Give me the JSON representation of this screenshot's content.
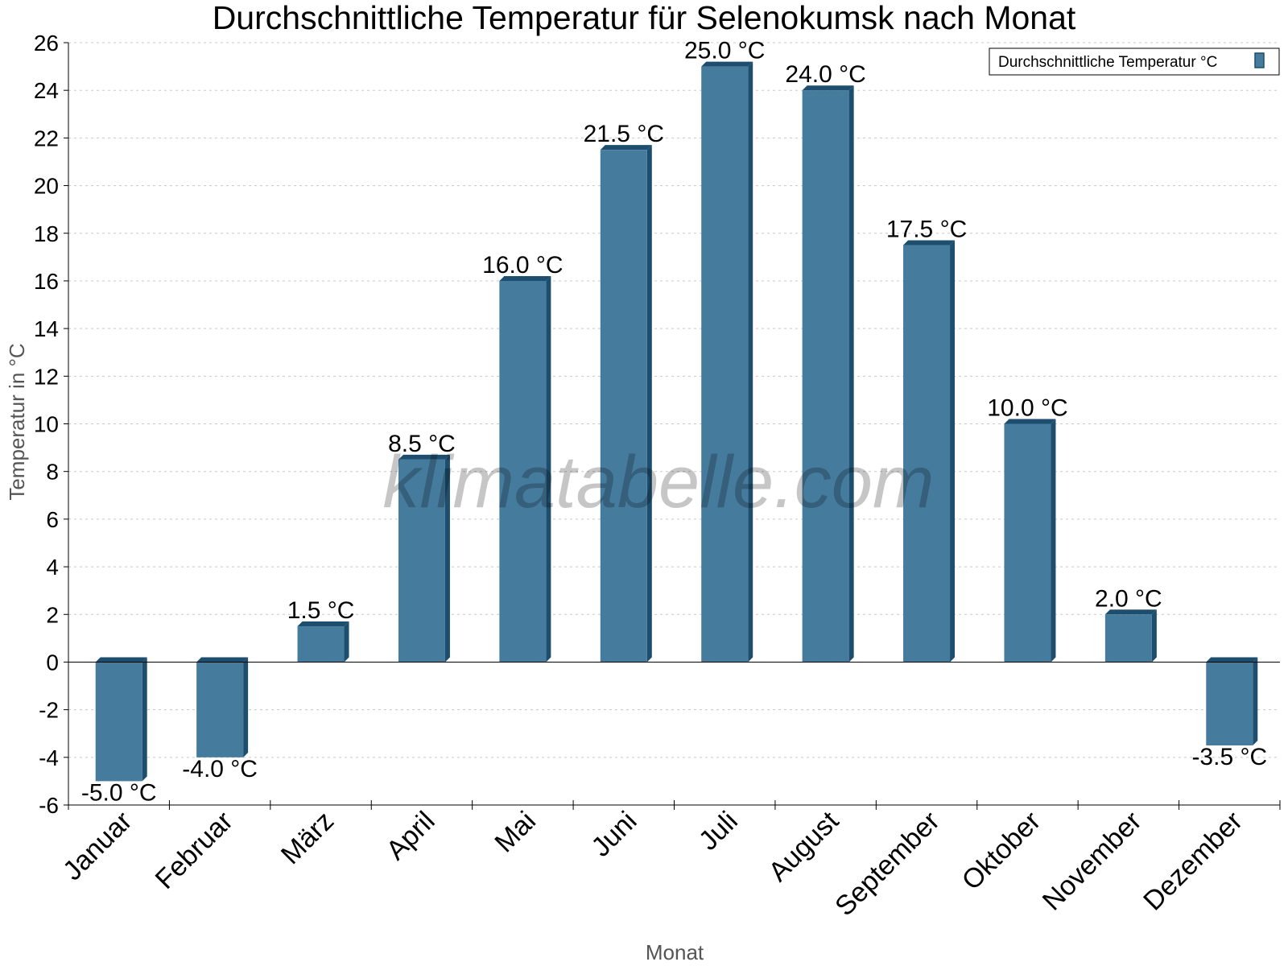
{
  "chart_data": {
    "type": "bar",
    "title": "Durchschnittliche Temperatur für Selenokumsk nach Monat",
    "xlabel": "Monat",
    "ylabel": "Temperatur in °C",
    "categories": [
      "Januar",
      "Februar",
      "März",
      "April",
      "Mai",
      "Juni",
      "Juli",
      "August",
      "September",
      "Oktober",
      "November",
      "Dezember"
    ],
    "series": [
      {
        "name": "Durchschnittliche Temperatur °C",
        "values": [
          -5.0,
          -4.0,
          1.5,
          8.5,
          16.0,
          21.5,
          25.0,
          24.0,
          17.5,
          10.0,
          2.0,
          -3.5
        ],
        "data_labels": [
          "-5.0 °C",
          "-4.0 °C",
          "1.5 °C",
          "8.5 °C",
          "16.0 °C",
          "21.5 °C",
          "25.0 °C",
          "24.0 °C",
          "17.5 °C",
          "10.0 °C",
          "2.0 °C",
          "-3.5 °C"
        ]
      }
    ],
    "ylim": [
      -6,
      26
    ],
    "yticks": [
      "-6",
      "-4",
      "-2",
      "0",
      "2",
      "4",
      "6",
      "8",
      "10",
      "12",
      "14",
      "16",
      "18",
      "20",
      "22",
      "24",
      "26"
    ],
    "grid": true,
    "legend": "top-right",
    "colors": {
      "bar": "#457b9d",
      "bar_side": "#1d4e6e",
      "grid": "#c8c8c8"
    }
  },
  "watermark": "klimatabelle.com"
}
